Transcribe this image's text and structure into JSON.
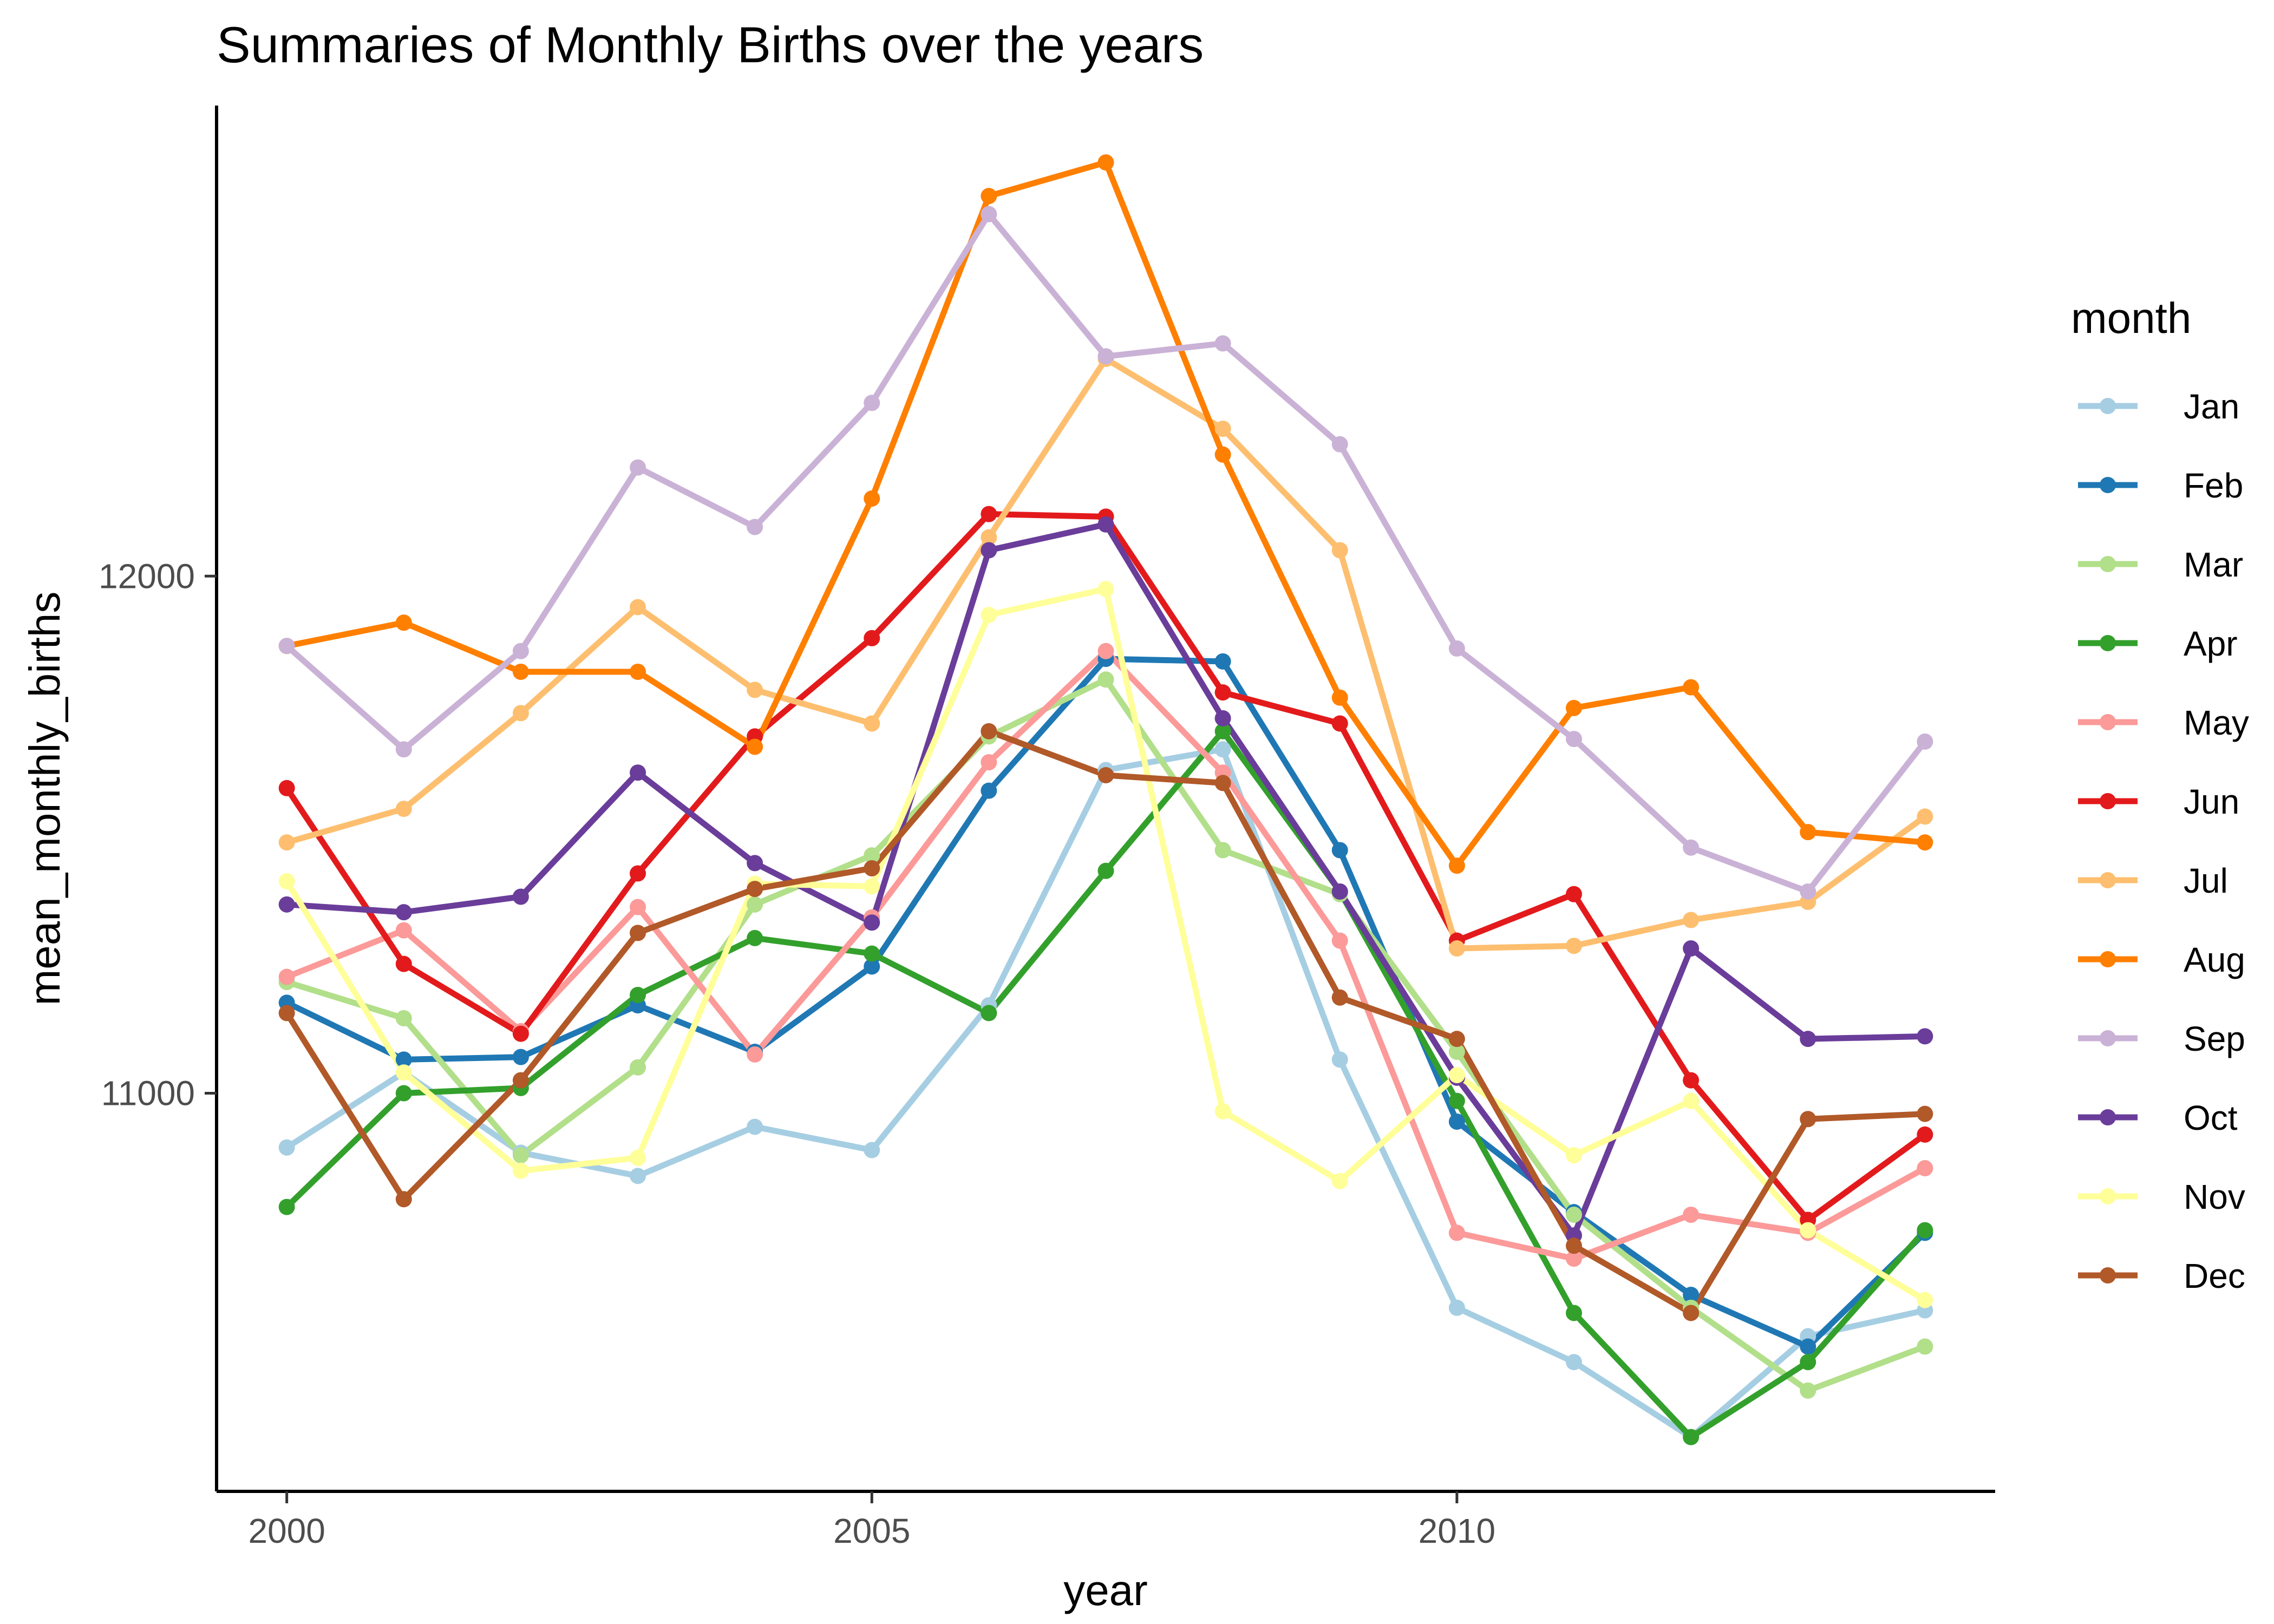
{
  "chart_data": {
    "type": "line",
    "title": "Summaries of Monthly Births over the years",
    "xlabel": "year",
    "ylabel": "mean_monthly_births",
    "xlim": [
      1999.4,
      2014.6
    ],
    "ylim": [
      10230,
      12910
    ],
    "x_ticks": [
      2000,
      2005,
      2010
    ],
    "y_ticks": [
      11000,
      12000
    ],
    "grid": false,
    "legend_position": "right",
    "legend_title": "month",
    "x": [
      2000,
      2001,
      2002,
      2003,
      2004,
      2005,
      2006,
      2007,
      2008,
      2009,
      2010,
      2011,
      2012,
      2013,
      2014
    ],
    "series": [
      {
        "name": "Jan",
        "color": "#a6cee3",
        "values": [
          10895,
          11040,
          10885,
          10840,
          10935,
          10890,
          11170,
          11625,
          11665,
          11065,
          10585,
          10480,
          10335,
          10530,
          10580
        ]
      },
      {
        "name": "Feb",
        "color": "#1f78b4",
        "values": [
          11175,
          11065,
          11070,
          11170,
          11080,
          11245,
          11585,
          11840,
          11835,
          11470,
          10945,
          10770,
          10610,
          10510,
          10730
        ]
      },
      {
        "name": "Mar",
        "color": "#b2df8a",
        "values": [
          11215,
          11145,
          10880,
          11050,
          11365,
          11460,
          11690,
          11800,
          11470,
          11385,
          11080,
          10765,
          10585,
          10425,
          10510
        ]
      },
      {
        "name": "Apr",
        "color": "#33a02c",
        "values": [
          10780,
          11000,
          11010,
          11190,
          11300,
          11270,
          11155,
          11430,
          11700,
          11390,
          10985,
          10575,
          10335,
          10480,
          10735
        ]
      },
      {
        "name": "May",
        "color": "#fb9a99",
        "values": [
          11225,
          11315,
          11120,
          11360,
          11075,
          11340,
          11640,
          11855,
          11620,
          11295,
          10730,
          10680,
          10765,
          10730,
          10855
        ]
      },
      {
        "name": "Jun",
        "color": "#e31a1c",
        "values": [
          11590,
          11250,
          11115,
          11425,
          11690,
          11880,
          12120,
          12115,
          11775,
          11715,
          11295,
          11385,
          11025,
          10755,
          10920
        ]
      },
      {
        "name": "Jul",
        "color": "#fdbf6f",
        "values": [
          11485,
          11550,
          11735,
          11940,
          11780,
          11715,
          12075,
          12420,
          12285,
          12050,
          11280,
          11285,
          11335,
          11370,
          11535
        ]
      },
      {
        "name": "Aug",
        "color": "#ff7f00",
        "values": [
          11865,
          11910,
          11815,
          11815,
          11670,
          12150,
          12735,
          12800,
          12235,
          11765,
          11440,
          11745,
          11785,
          11505,
          11485
        ]
      },
      {
        "name": "Sep",
        "color": "#cab2d6",
        "values": [
          11865,
          11665,
          11855,
          12210,
          12095,
          12335,
          12700,
          12425,
          12450,
          12255,
          11860,
          11685,
          11475,
          11390,
          11680
        ]
      },
      {
        "name": "Oct",
        "color": "#6a3d9a",
        "values": [
          11365,
          11350,
          11380,
          11620,
          11445,
          11330,
          12050,
          12100,
          11725,
          11390,
          11030,
          10725,
          11280,
          11105,
          11110
        ]
      },
      {
        "name": "Nov",
        "color": "#ffff99",
        "values": [
          11410,
          11040,
          10850,
          10875,
          11405,
          11400,
          11925,
          11975,
          10965,
          10830,
          11035,
          10880,
          10985,
          10735,
          10600
        ]
      },
      {
        "name": "Dec",
        "color": "#b15928",
        "values": [
          11155,
          10795,
          11025,
          11310,
          11395,
          11435,
          11700,
          11615,
          11600,
          11185,
          11105,
          10705,
          10575,
          10950,
          10960
        ]
      }
    ]
  }
}
